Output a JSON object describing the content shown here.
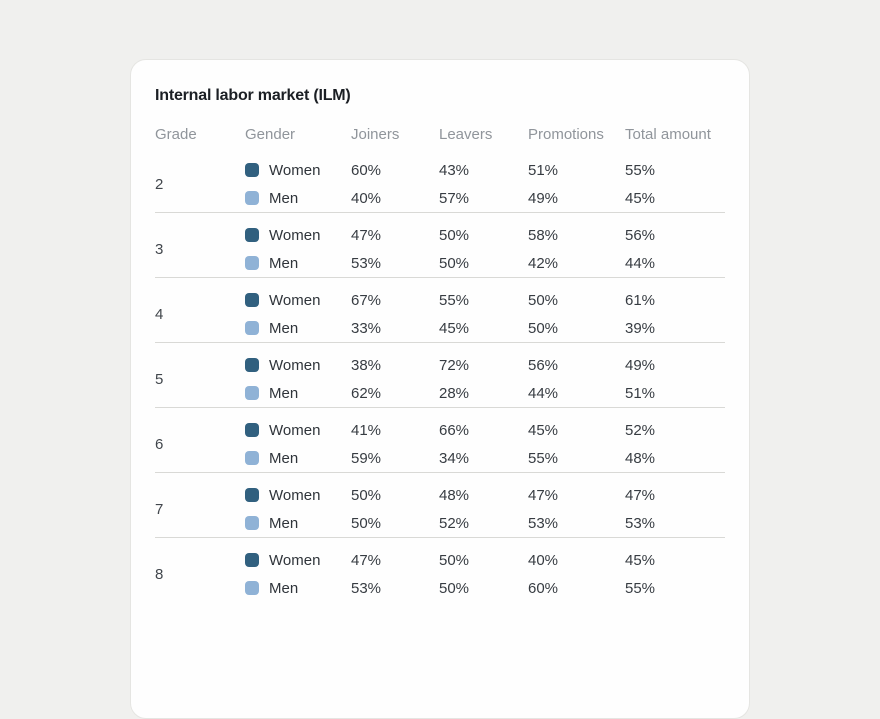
{
  "card": {
    "title": "Internal labor market (ILM)",
    "columns": [
      "Grade",
      "Gender",
      "Joiners",
      "Leavers",
      "Promotions",
      "Total amount"
    ],
    "colors": {
      "women": "#31607f",
      "men": "#8fb2d6"
    },
    "groups": [
      {
        "grade": "2",
        "rows": [
          {
            "gender": "Women",
            "joiners": "60%",
            "leavers": "43%",
            "promotions": "51%",
            "total": "55%"
          },
          {
            "gender": "Men",
            "joiners": "40%",
            "leavers": "57%",
            "promotions": "49%",
            "total": "45%"
          }
        ]
      },
      {
        "grade": "3",
        "rows": [
          {
            "gender": "Women",
            "joiners": "47%",
            "leavers": "50%",
            "promotions": "58%",
            "total": "56%"
          },
          {
            "gender": "Men",
            "joiners": "53%",
            "leavers": "50%",
            "promotions": "42%",
            "total": "44%"
          }
        ]
      },
      {
        "grade": "4",
        "rows": [
          {
            "gender": "Women",
            "joiners": "67%",
            "leavers": "55%",
            "promotions": "50%",
            "total": "61%"
          },
          {
            "gender": "Men",
            "joiners": "33%",
            "leavers": "45%",
            "promotions": "50%",
            "total": "39%"
          }
        ]
      },
      {
        "grade": "5",
        "rows": [
          {
            "gender": "Women",
            "joiners": "38%",
            "leavers": "72%",
            "promotions": "56%",
            "total": "49%"
          },
          {
            "gender": "Men",
            "joiners": "62%",
            "leavers": "28%",
            "promotions": "44%",
            "total": "51%"
          }
        ]
      },
      {
        "grade": "6",
        "rows": [
          {
            "gender": "Women",
            "joiners": "41%",
            "leavers": "66%",
            "promotions": "45%",
            "total": "52%"
          },
          {
            "gender": "Men",
            "joiners": "59%",
            "leavers": "34%",
            "promotions": "55%",
            "total": "48%"
          }
        ]
      },
      {
        "grade": "7",
        "rows": [
          {
            "gender": "Women",
            "joiners": "50%",
            "leavers": "48%",
            "promotions": "47%",
            "total": "47%"
          },
          {
            "gender": "Men",
            "joiners": "50%",
            "leavers": "52%",
            "promotions": "53%",
            "total": "53%"
          }
        ]
      },
      {
        "grade": "8",
        "rows": [
          {
            "gender": "Women",
            "joiners": "47%",
            "leavers": "50%",
            "promotions": "40%",
            "total": "45%"
          },
          {
            "gender": "Men",
            "joiners": "53%",
            "leavers": "50%",
            "promotions": "60%",
            "total": "55%"
          }
        ]
      }
    ]
  }
}
